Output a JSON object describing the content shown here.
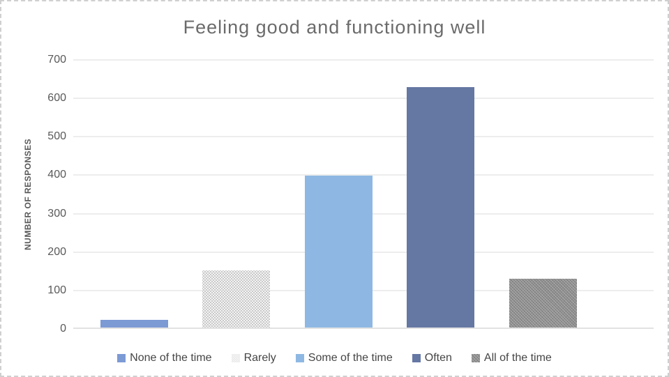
{
  "chart": {
    "title": "Feeling good and functioning well",
    "y_axis_title": "NUMBER OF RESPONSES"
  },
  "chart_data": {
    "type": "bar",
    "title": "Feeling good and functioning well",
    "xlabel": "",
    "ylabel": "NUMBER OF RESPONSES",
    "ylim": [
      0,
      700
    ],
    "yticks": [
      0,
      100,
      200,
      300,
      400,
      500,
      600,
      700
    ],
    "grid": true,
    "legend_position": "bottom",
    "series": [
      {
        "name": "None of the time",
        "value": 20,
        "color": "#7C9AD4",
        "pattern": "solid"
      },
      {
        "name": "Rarely",
        "value": 148,
        "color": "#C9C9C9",
        "pattern": "dots"
      },
      {
        "name": "Some of the time",
        "value": 395,
        "color": "#8EB8E3",
        "pattern": "solid"
      },
      {
        "name": "Often",
        "value": 625,
        "color": "#6577A3",
        "pattern": "solid"
      },
      {
        "name": "All of the time",
        "value": 127,
        "color": "#8E8E8E",
        "pattern": "weave"
      }
    ]
  }
}
